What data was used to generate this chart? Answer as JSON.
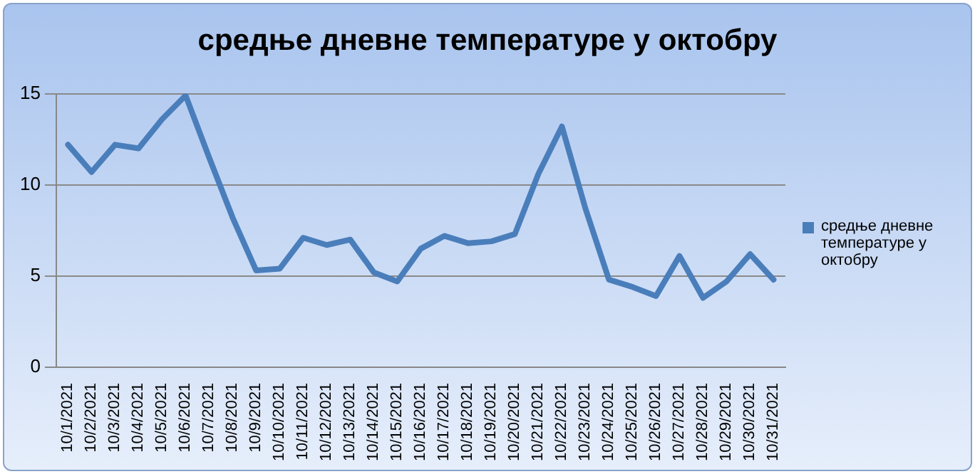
{
  "chart_data": {
    "type": "line",
    "title": "средње дневне температуре у октобру",
    "categories": [
      "10/1/2021",
      "10/2/2021",
      "10/3/2021",
      "10/4/2021",
      "10/5/2021",
      "10/6/2021",
      "10/7/2021",
      "10/8/2021",
      "10/9/2021",
      "10/10/2021",
      "10/11/2021",
      "10/12/2021",
      "10/13/2021",
      "10/14/2021",
      "10/15/2021",
      "10/16/2021",
      "10/17/2021",
      "10/18/2021",
      "10/19/2021",
      "10/20/2021",
      "10/21/2021",
      "10/22/2021",
      "10/23/2021",
      "10/24/2021",
      "10/25/2021",
      "10/26/2021",
      "10/27/2021",
      "10/28/2021",
      "10/29/2021",
      "10/30/2021",
      "10/31/2021"
    ],
    "series": [
      {
        "name": "средње дневне температуре у октобру",
        "color": "#4a7ebb",
        "values": [
          12.2,
          10.7,
          12.2,
          12.0,
          13.6,
          14.9,
          11.5,
          8.2,
          5.3,
          5.4,
          7.1,
          6.7,
          7.0,
          5.2,
          4.7,
          6.5,
          7.2,
          6.8,
          6.9,
          7.3,
          10.6,
          13.2,
          8.7,
          4.8,
          4.4,
          3.9,
          6.1,
          3.8,
          4.7,
          6.2,
          4.8
        ]
      }
    ],
    "ylim": [
      0,
      15
    ],
    "yticks": [
      0,
      5,
      10,
      15
    ],
    "grid": "y",
    "legend": "right",
    "marker": "none"
  }
}
